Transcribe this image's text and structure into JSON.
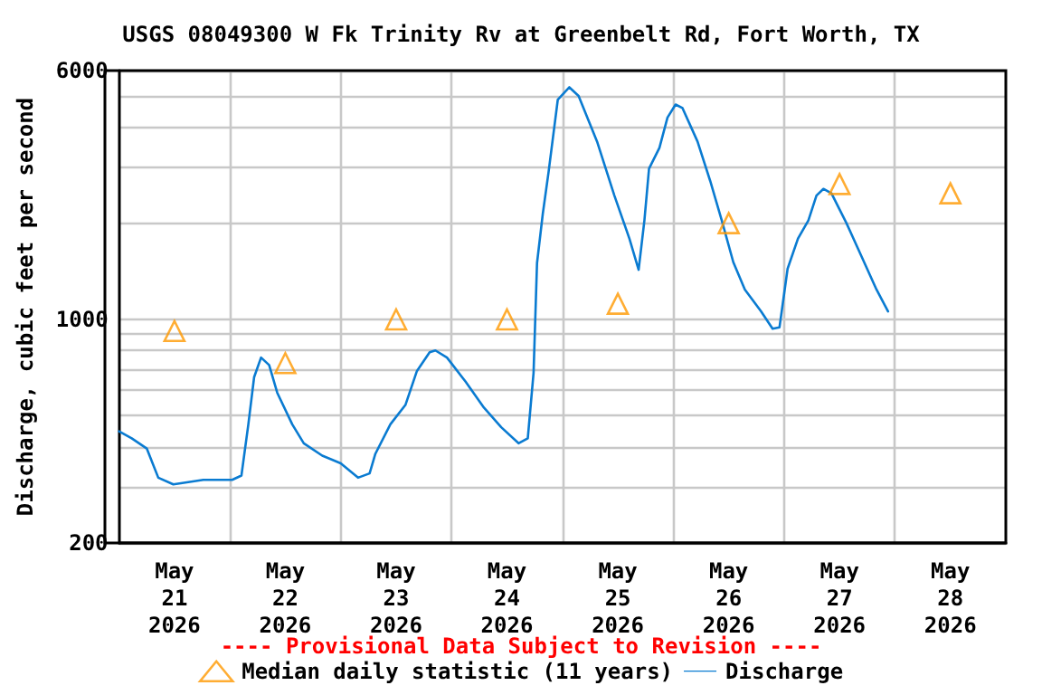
{
  "chart_data": {
    "type": "line",
    "title": "USGS 08049300 W Fk Trinity Rv at Greenbelt Rd, Fort Worth, TX",
    "ylabel": "Discharge, cubic feet per second",
    "annotations": [
      "---- Provisional Data Subject to Revision ----"
    ],
    "log": "y",
    "grid": true,
    "legend": "bottom",
    "xlim": [
      "2026-05-21T00:00",
      "2026-05-29T00:00"
    ],
    "xticks": [
      {
        "value": "2026-05-21T12:00",
        "label": "May\n21\n2026"
      },
      {
        "value": "2026-05-22T00:00",
        "label": null
      },
      {
        "value": "2026-05-22T12:00",
        "label": "May\n22\n2026"
      },
      {
        "value": "2026-05-23T00:00",
        "label": null
      },
      {
        "value": "2026-05-23T12:00",
        "label": "May\n23\n2026"
      },
      {
        "value": "2026-05-24T00:00",
        "label": null
      },
      {
        "value": "2026-05-24T12:00",
        "label": "May\n24\n2026"
      },
      {
        "value": "2026-05-25T00:00",
        "label": null
      },
      {
        "value": "2026-05-25T12:00",
        "label": "May\n25\n2026"
      },
      {
        "value": "2026-05-26T00:00",
        "label": null
      },
      {
        "value": "2026-05-26T12:00",
        "label": "May\n26\n2026"
      },
      {
        "value": "2026-05-27T00:00",
        "label": null
      },
      {
        "value": "2026-05-27T12:00",
        "label": "May\n27\n2026"
      },
      {
        "value": "2026-05-28T00:00",
        "label": null
      },
      {
        "value": "2026-05-28T12:00",
        "label": "May\n28\n2026"
      }
    ],
    "ylim": [
      200,
      6000
    ],
    "yticks": [
      200,
      {
        "value": 300,
        "label": null
      },
      {
        "value": 400,
        "label": null
      },
      {
        "value": 500,
        "label": null
      },
      {
        "value": 600,
        "label": null
      },
      {
        "value": 700,
        "label": null
      },
      {
        "value": 800,
        "label": null
      },
      {
        "value": 900,
        "label": null
      },
      1000,
      {
        "value": 2000,
        "label": null
      },
      {
        "value": 3000,
        "label": null
      },
      {
        "value": 4000,
        "label": null
      },
      {
        "value": 5000,
        "label": null
      },
      6000
    ],
    "series": [
      {
        "name": "Median daily statistic (11 years)",
        "type": "scatter",
        "marker": "triangle",
        "color": "#ff9900",
        "x": [
          "2026-05-21T12:00",
          "2026-05-22T12:00",
          "2026-05-23T12:00",
          "2026-05-24T12:00",
          "2026-05-25T12:00",
          "2026-05-26T12:00",
          "2026-05-27T12:00",
          "2026-05-28T12:00"
        ],
        "values": [
          920,
          730,
          1000,
          1000,
          1120,
          2000,
          2650,
          2480
        ]
      },
      {
        "name": "Discharge",
        "marker": "none",
        "line_style": "solid",
        "color": "#0a7bd1",
        "x": [
          "2026-05-21T00:00",
          "2026-05-21T02:45",
          "2026-05-21T06:00",
          "2026-05-21T08:30",
          "2026-05-21T11:45",
          "2026-05-21T18:15",
          "2026-05-22T00:30",
          "2026-05-22T02:30",
          "2026-05-22T04:00",
          "2026-05-22T05:15",
          "2026-05-22T06:45",
          "2026-05-22T08:30",
          "2026-05-22T10:15",
          "2026-05-22T13:30",
          "2026-05-22T16:00",
          "2026-05-22T20:00",
          "2026-05-23T00:00",
          "2026-05-23T03:45",
          "2026-05-23T06:15",
          "2026-05-23T07:30",
          "2026-05-23T10:45",
          "2026-05-23T14:00",
          "2026-05-23T16:30",
          "2026-05-23T19:15",
          "2026-05-23T20:30",
          "2026-05-23T23:00",
          "2026-05-24T03:00",
          "2026-05-24T07:00",
          "2026-05-24T10:45",
          "2026-05-24T14:30",
          "2026-05-24T16:30",
          "2026-05-24T17:45",
          "2026-05-24T18:30",
          "2026-05-24T19:45",
          "2026-05-24T21:00",
          "2026-05-24T23:00",
          "2026-05-25T01:30",
          "2026-05-25T03:30",
          "2026-05-25T07:30",
          "2026-05-25T11:15",
          "2026-05-25T14:30",
          "2026-05-25T16:30",
          "2026-05-25T17:45",
          "2026-05-25T18:45",
          "2026-05-25T21:00",
          "2026-05-25T22:45",
          "2026-05-26T00:30",
          "2026-05-26T02:00",
          "2026-05-26T05:15",
          "2026-05-26T08:00",
          "2026-05-26T10:30",
          "2026-05-26T13:00",
          "2026-05-26T15:30",
          "2026-05-26T19:00",
          "2026-05-26T21:30",
          "2026-05-26T23:00",
          "2026-05-27T00:45",
          "2026-05-27T03:00",
          "2026-05-27T05:15",
          "2026-05-27T07:00",
          "2026-05-27T08:30",
          "2026-05-27T10:15",
          "2026-05-27T13:30",
          "2026-05-27T16:45",
          "2026-05-27T20:00",
          "2026-05-27T22:30"
        ],
        "values": [
          447,
          425,
          395,
          320,
          305,
          315,
          315,
          325,
          470,
          660,
          760,
          720,
          590,
          470,
          410,
          375,
          355,
          320,
          330,
          380,
          470,
          540,
          690,
          790,
          800,
          760,
          640,
          530,
          460,
          410,
          425,
          680,
          1500,
          2140,
          2890,
          4870,
          5320,
          5000,
          3600,
          2440,
          1790,
          1430,
          2040,
          2960,
          3440,
          4280,
          4700,
          4580,
          3600,
          2710,
          2040,
          1510,
          1240,
          1060,
          935,
          945,
          1440,
          1790,
          2040,
          2440,
          2560,
          2480,
          2000,
          1575,
          1240,
          1060
        ]
      }
    ]
  }
}
